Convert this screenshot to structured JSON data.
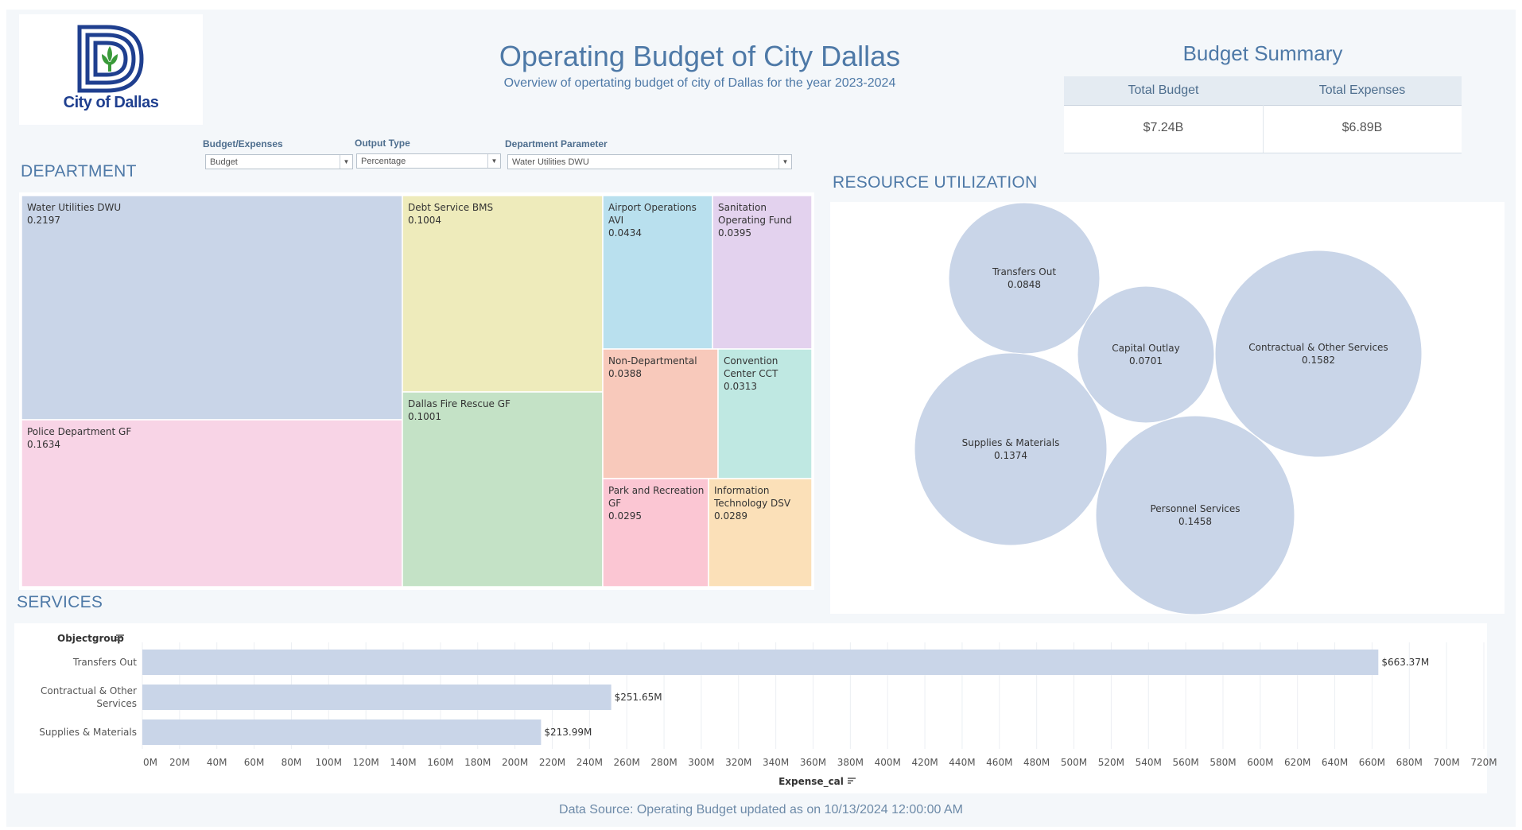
{
  "logo": {
    "text": "City of Dallas"
  },
  "header": {
    "title": "Operating Budget of City Dallas",
    "subtitle": "Overview of opertating budget of city of Dallas for the year 2023-2024"
  },
  "summary": {
    "title": "Budget Summary",
    "columns": [
      "Total Budget",
      "Total Expenses"
    ],
    "values": [
      "$7.24B",
      "$6.89B"
    ]
  },
  "filters": [
    {
      "label": "Budget/Expenses",
      "value": "Budget"
    },
    {
      "label": "Output Type",
      "value": "Percentage"
    },
    {
      "label": "Department Parameter",
      "value": "Water Utilities DWU"
    }
  ],
  "sections": {
    "department": "DEPARTMENT",
    "resource": "RESOURCE UTILIZATION",
    "services": "SERVICES"
  },
  "footer": "Data Source: Operating Budget updated as on 10/13/2024 12:00:00 AM",
  "chart_data": [
    {
      "type": "treemap",
      "items": [
        {
          "label": [
            "Water Utilities DWU"
          ],
          "value": "0.2197",
          "color": "#c9d5e8"
        },
        {
          "label": [
            "Police Department GF"
          ],
          "value": "0.1634",
          "color": "#f8d4e6"
        },
        {
          "label": [
            "Debt Service BMS"
          ],
          "value": "0.1004",
          "color": "#eeebbb"
        },
        {
          "label": [
            "Dallas Fire Rescue GF"
          ],
          "value": "0.1001",
          "color": "#c4e2c6"
        },
        {
          "label": [
            "Airport Operations",
            "AVI"
          ],
          "value": "0.0434",
          "color": "#b9e0ee"
        },
        {
          "label": [
            "Sanitation",
            "Operating Fund"
          ],
          "value": "0.0395",
          "color": "#e3d2ee"
        },
        {
          "label": [
            "Non-Departmental"
          ],
          "value": "0.0388",
          "color": "#f8c9bb"
        },
        {
          "label": [
            "Convention",
            "Center CCT"
          ],
          "value": "0.0313",
          "color": "#bfe8e2"
        },
        {
          "label": [
            "Park and Recreation",
            "GF"
          ],
          "value": "0.0295",
          "color": "#fbc6d3"
        },
        {
          "label": [
            "Information",
            "Technology DSV"
          ],
          "value": "0.0289",
          "color": "#fbe0b8"
        }
      ]
    },
    {
      "type": "bubble",
      "color": "#c9d5e8",
      "items": [
        {
          "label": "Transfers Out",
          "value": "0.0848"
        },
        {
          "label": "Capital Outlay",
          "value": "0.0701"
        },
        {
          "label": "Contractual & Other Services",
          "value": "0.1582"
        },
        {
          "label": "Supplies & Materials",
          "value": "0.1374"
        },
        {
          "label": "Personnel Services",
          "value": "0.1458"
        }
      ]
    },
    {
      "type": "bar",
      "orientation": "horizontal",
      "ylabel": "Objectgroup",
      "xlabel": "Expense_cal",
      "color": "#c9d5e8",
      "categories": [
        [
          "Transfers Out"
        ],
        [
          "Contractual & Other",
          "Services"
        ],
        [
          "Supplies & Materials"
        ]
      ],
      "values": [
        663.37,
        251.65,
        213.99
      ],
      "value_labels": [
        "$663.37M",
        "$251.65M",
        "$213.99M"
      ],
      "xlim": [
        0,
        720
      ],
      "xticks": [
        "0M",
        "20M",
        "40M",
        "60M",
        "80M",
        "100M",
        "120M",
        "140M",
        "160M",
        "180M",
        "200M",
        "220M",
        "240M",
        "260M",
        "280M",
        "300M",
        "320M",
        "340M",
        "360M",
        "380M",
        "400M",
        "420M",
        "440M",
        "460M",
        "480M",
        "500M",
        "520M",
        "540M",
        "560M",
        "580M",
        "600M",
        "620M",
        "640M",
        "660M",
        "680M",
        "700M",
        "720M"
      ]
    }
  ]
}
